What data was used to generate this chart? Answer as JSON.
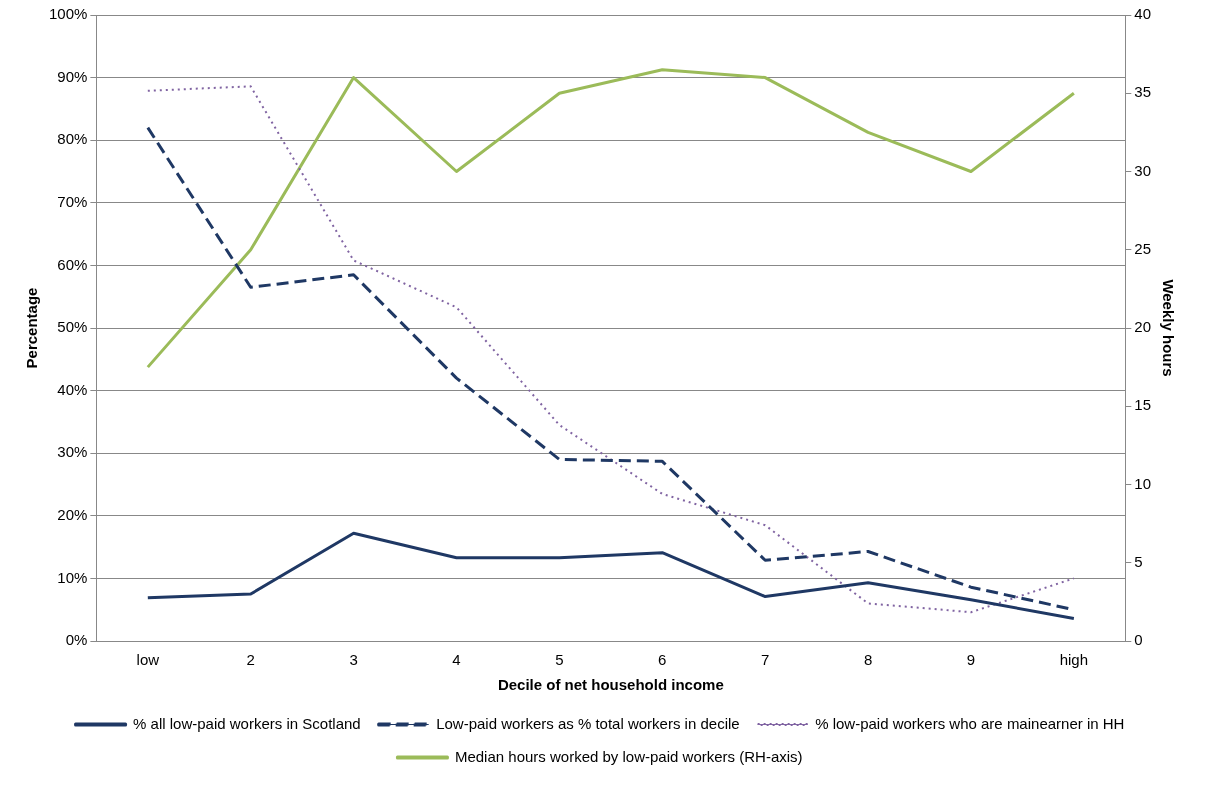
{
  "chart_data": {
    "type": "line",
    "xlabel": "Decile of net household income",
    "ylabel": "Percentage",
    "y2label": "Weekly hours",
    "categories": [
      "low",
      "2",
      "3",
      "4",
      "5",
      "6",
      "7",
      "8",
      "9",
      "high"
    ],
    "series": [
      {
        "name": "% all low-paid workers in Scotland",
        "color": "#1f3864",
        "line_style": "solid",
        "values": [
          6.9,
          7.5,
          17.2,
          13.3,
          13.3,
          14.1,
          7.1,
          9.3,
          6.6,
          3.6
        ]
      },
      {
        "name": "Low-paid workers as % total workers in decile",
        "color": "#1f3864",
        "line_style": "dashed",
        "values": [
          82,
          56.5,
          58.5,
          42,
          29,
          28.7,
          12.9,
          14.3,
          8.6,
          5
        ]
      },
      {
        "name": "% low-paid workers who are mainearner in HH",
        "color": "#8064a2",
        "line_style": "dotted",
        "values": [
          87.9,
          88.6,
          60.8,
          53.3,
          34.5,
          23.5,
          18.5,
          6,
          4.6,
          10
        ]
      },
      {
        "name": "Median hours worked by low-paid workers (RH-axis)",
        "color": "#9bbb59",
        "line_style": "solid",
        "axis": "y2",
        "values": [
          17.5,
          25,
          36,
          30,
          35,
          36.5,
          36,
          32.5,
          30,
          35
        ]
      }
    ],
    "ylim": [
      0,
      100
    ],
    "yticks": [
      {
        "value": 0,
        "label": "0%"
      },
      {
        "value": 10,
        "label": "10%"
      },
      {
        "value": 20,
        "label": "20%"
      },
      {
        "value": 30,
        "label": "30%"
      },
      {
        "value": 40,
        "label": "40%"
      },
      {
        "value": 50,
        "label": "50%"
      },
      {
        "value": 60,
        "label": "60%"
      },
      {
        "value": 70,
        "label": "70%"
      },
      {
        "value": 80,
        "label": "80%"
      },
      {
        "value": 90,
        "label": "90%"
      },
      {
        "value": 100,
        "label": "100%"
      }
    ],
    "y2lim": [
      0,
      40
    ],
    "y2ticks": [
      0,
      5,
      10,
      15,
      20,
      25,
      30,
      35,
      40
    ],
    "grid": "y",
    "legend": "bottom",
    "marker": "none"
  }
}
